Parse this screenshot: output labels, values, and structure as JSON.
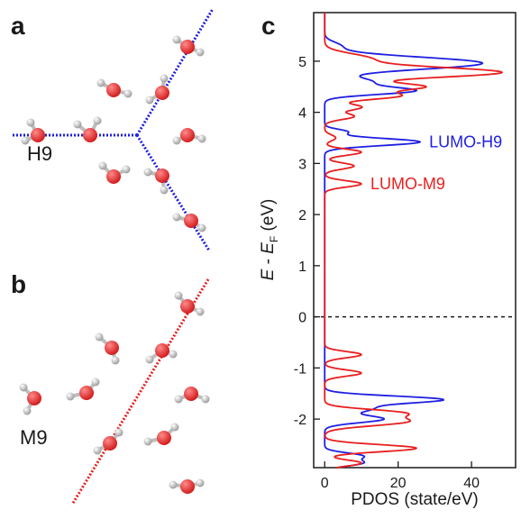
{
  "panels": {
    "a": {
      "letter": "a",
      "label": "H9"
    },
    "b": {
      "letter": "b",
      "label": "M9"
    },
    "c": {
      "letter": "c"
    }
  },
  "colors": {
    "h9_line": "#1f1fe0",
    "m9_line": "#e81f1f",
    "oxygen": "#d11a1a",
    "hydrogen": "#e6e6e6",
    "axis": "#1a1a1a"
  },
  "chart_data": {
    "type": "line",
    "orientation": "horizontal-density",
    "xlabel": "PDOS (state/eV)",
    "ylabel_parts": {
      "E": "E",
      "minus": " - ",
      "EF": "E",
      "F_sub": "F",
      "unit": " (eV)"
    },
    "xlim": [
      -3,
      52
    ],
    "ylim": [
      -2.95,
      5.95
    ],
    "x_ticks": [
      0,
      20,
      40
    ],
    "y_ticks": [
      -2,
      -1,
      0,
      1,
      2,
      3,
      4,
      5
    ],
    "reference_line": {
      "y": 0,
      "style": "dashed"
    },
    "series": [
      {
        "name": "H9",
        "color": "#1f1fe0",
        "peaks": [
          {
            "E": -2.72,
            "height": 10,
            "width": 0.06
          },
          {
            "E": -2.86,
            "height": 10,
            "width": 0.06
          },
          {
            "E": -2.0,
            "height": 16,
            "width": 0.07
          },
          {
            "E": -1.62,
            "height": 32,
            "width": 0.07
          },
          {
            "E": -1.8,
            "height": 12,
            "width": 0.07
          },
          {
            "E": 3.42,
            "height": 26,
            "width": 0.07
          },
          {
            "E": 3.62,
            "height": 6,
            "width": 0.05
          },
          {
            "E": 4.42,
            "height": 24,
            "width": 0.07
          },
          {
            "E": 4.6,
            "height": 12,
            "width": 0.08
          },
          {
            "E": 4.96,
            "height": 43,
            "width": 0.12
          },
          {
            "E": 5.3,
            "height": 4,
            "width": 0.08
          }
        ]
      },
      {
        "name": "M9",
        "color": "#e81f1f",
        "peaks": [
          {
            "E": -2.57,
            "height": 25,
            "width": 0.07
          },
          {
            "E": -2.86,
            "height": 10,
            "width": 0.06
          },
          {
            "E": -2.05,
            "height": 22,
            "width": 0.08
          },
          {
            "E": -1.88,
            "height": 20,
            "width": 0.07
          },
          {
            "E": -1.1,
            "height": 10,
            "width": 0.06
          },
          {
            "E": -0.74,
            "height": 10,
            "width": 0.06
          },
          {
            "E": 2.6,
            "height": 10,
            "width": 0.06
          },
          {
            "E": 2.95,
            "height": 8,
            "width": 0.06
          },
          {
            "E": 3.22,
            "height": 10,
            "width": 0.06
          },
          {
            "E": 3.5,
            "height": 3,
            "width": 0.06
          },
          {
            "E": 3.92,
            "height": 8,
            "width": 0.06
          },
          {
            "E": 4.1,
            "height": 10,
            "width": 0.06
          },
          {
            "E": 4.32,
            "height": 20,
            "width": 0.07
          },
          {
            "E": 4.5,
            "height": 26,
            "width": 0.07
          },
          {
            "E": 4.78,
            "height": 48,
            "width": 0.1
          },
          {
            "E": 5.05,
            "height": 12,
            "width": 0.1
          }
        ]
      }
    ],
    "annotations": [
      {
        "text": "LUMO-H9",
        "series": "H9",
        "x": 26,
        "y": 3.42
      },
      {
        "text": "LUMO-M9",
        "series": "M9",
        "x": 10,
        "y": 2.6
      }
    ]
  }
}
